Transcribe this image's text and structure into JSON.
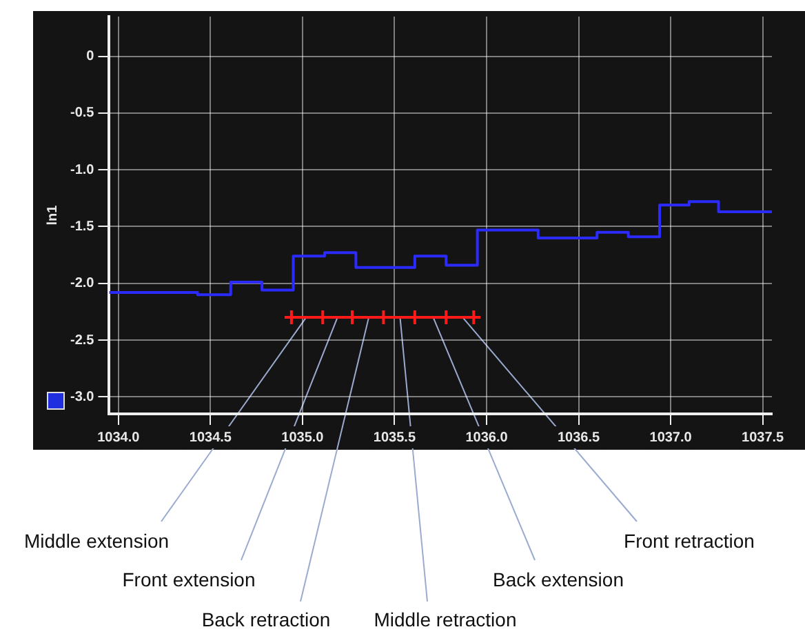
{
  "chart_data": {
    "type": "step",
    "ylabel": "ln1",
    "xlim": [
      1033.95,
      1037.55
    ],
    "xticks": [
      {
        "value": 1034,
        "label": "1034.0"
      },
      1034.5,
      {
        "value": 1035,
        "label": "1035.0"
      },
      1035.5,
      {
        "value": 1036,
        "label": "1036.0"
      },
      1036.5,
      {
        "value": 1037,
        "label": "1037.0"
      },
      1037.5
    ],
    "ylim": [
      -3.15,
      0.35
    ],
    "yticks": [
      {
        "value": -3,
        "label": "-3.0"
      },
      -2.5,
      {
        "value": -2,
        "label": "-2.0"
      },
      -1.5,
      {
        "value": -1,
        "label": "-1.0"
      },
      -0.5,
      0
    ],
    "grid": true,
    "series": [
      {
        "type": "step",
        "color": "#2b2bff",
        "marker": "none",
        "x": [
          1033.95,
          1034.43,
          1034.61,
          1034.78,
          1034.95,
          1035.12,
          1035.29,
          1035.61,
          1035.78,
          1035.95,
          1036.28,
          1036.6,
          1036.77,
          1036.94,
          1037.1,
          1037.26,
          1037.55
        ],
        "values": [
          -2.08,
          -2.1,
          -1.99,
          -2.06,
          -1.76,
          -1.73,
          -1.86,
          -1.76,
          -1.84,
          -1.53,
          -1.6,
          -1.55,
          -1.59,
          -1.31,
          -1.28,
          -1.37,
          -1.37
        ]
      },
      {
        "type": "line",
        "color": "#ff1a1a",
        "marker": "cross",
        "x": [
          1034.94,
          1035.11,
          1035.27,
          1035.44,
          1035.61,
          1035.78,
          1035.93
        ],
        "values": [
          -2.3,
          -2.3,
          -2.3,
          -2.3,
          -2.3,
          -2.3,
          -2.3
        ]
      }
    ],
    "annotations": [
      {
        "text": "Middle extension",
        "x": 1035.02,
        "y": -2.3
      },
      {
        "text": "Front extension",
        "x": 1035.19,
        "y": -2.3
      },
      {
        "text": "Back retraction",
        "x": 1035.36,
        "y": -2.3
      },
      {
        "text": "Middle retraction",
        "x": 1035.53,
        "y": -2.3
      },
      {
        "text": "Back extension",
        "x": 1035.71,
        "y": -2.3
      },
      {
        "text": "Front retraction",
        "x": 1035.87,
        "y": -2.3
      }
    ]
  }
}
